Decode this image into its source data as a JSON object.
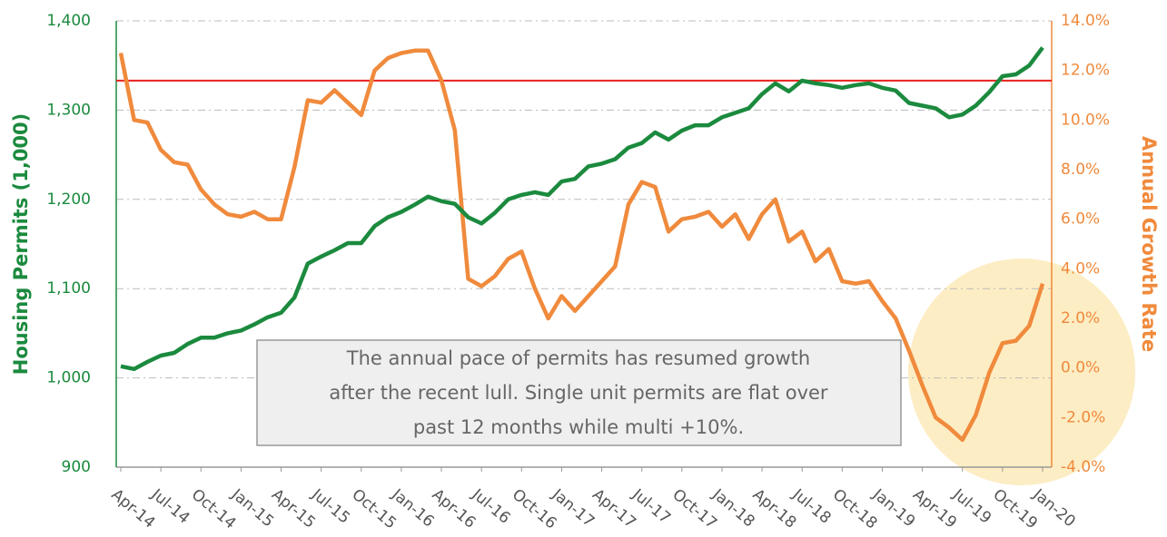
{
  "chart_data": {
    "type": "line",
    "ylabel": "Housing Permits (1,000)",
    "y2label": "Annual Growth Rate",
    "annotation": [
      "The annual pace of permits has resumed growth",
      "after the recent lull.  Single unit permits are flat over",
      "past 12 months while multi +10%."
    ],
    "categories": [
      "Apr-14",
      null,
      null,
      "Jul-14",
      null,
      null,
      "Oct-14",
      null,
      null,
      "Jan-15",
      null,
      null,
      "Apr-15",
      null,
      null,
      "Jul-15",
      null,
      null,
      "Oct-15",
      null,
      null,
      "Jan-16",
      null,
      null,
      "Apr-16",
      null,
      null,
      "Jul-16",
      null,
      null,
      "Oct-16",
      null,
      null,
      "Jan-17",
      null,
      null,
      "Apr-17",
      null,
      null,
      "Jul-17",
      null,
      null,
      "Oct-17",
      null,
      null,
      "Jan-18",
      null,
      null,
      "Apr-18",
      null,
      null,
      "Jul-18",
      null,
      null,
      "Oct-18",
      null,
      null,
      "Jan-19",
      null,
      null,
      "Apr-19",
      null,
      null,
      "Jul-19",
      null,
      null,
      "Oct-19",
      null,
      null,
      "Jan-20"
    ],
    "series": [
      {
        "color": "#1b8a3e",
        "values": [
          1013,
          1010,
          1018,
          1025,
          1028,
          1038,
          1045,
          1045,
          1050,
          1053,
          1060,
          1068,
          1073,
          1090,
          1128,
          1136,
          1143,
          1151,
          1151,
          1170,
          1180,
          1186,
          1194,
          1203,
          1198,
          1195,
          1180,
          1173,
          1185,
          1200,
          1205,
          1208,
          1205,
          1220,
          1223,
          1237,
          1240,
          1245,
          1258,
          1263,
          1275,
          1267,
          1277,
          1283,
          1283,
          1292,
          1297,
          1302,
          1318,
          1330,
          1321,
          1333,
          1330,
          1328,
          1325,
          1328,
          1330,
          1325,
          1322,
          1308,
          1305,
          1302,
          1292,
          1295,
          1305,
          1320,
          1338,
          1340,
          1350,
          1370
        ]
      },
      {
        "color": "#f08a3c",
        "axis": "y2",
        "values": [
          12.7,
          10.0,
          9.9,
          8.8,
          8.3,
          8.2,
          7.2,
          6.6,
          6.2,
          6.1,
          6.3,
          6.0,
          6.0,
          8.1,
          10.8,
          10.7,
          11.2,
          10.7,
          10.2,
          12.0,
          12.5,
          12.7,
          12.8,
          12.8,
          11.6,
          9.6,
          3.6,
          3.3,
          3.7,
          4.4,
          4.7,
          3.2,
          2.0,
          2.9,
          2.3,
          2.9,
          3.5,
          4.1,
          6.6,
          7.5,
          7.3,
          5.5,
          6.0,
          6.1,
          6.3,
          5.7,
          6.2,
          5.2,
          6.2,
          6.8,
          5.1,
          5.5,
          4.3,
          4.8,
          3.5,
          3.4,
          3.5,
          2.7,
          2.0,
          0.7,
          -0.7,
          -2.0,
          -2.4,
          -2.9,
          -1.9,
          -0.2,
          1.0,
          1.1,
          1.7,
          3.4
        ]
      }
    ],
    "reference_line": {
      "value": 1333,
      "color": "#e8211d"
    },
    "ylim": [
      900,
      1400
    ],
    "yticks": [
      900,
      {
        "value": 1000,
        "label": "1,000"
      },
      {
        "value": 1100,
        "label": "1,100"
      },
      {
        "value": 1200,
        "label": "1,200"
      },
      {
        "value": 1300,
        "label": "1,300"
      },
      {
        "value": 1400,
        "label": "1,400"
      }
    ],
    "y2lim": [
      -4,
      14
    ],
    "y2ticks": [
      {
        "value": -4,
        "label": "-4.0%"
      },
      {
        "value": -2,
        "label": "-2.0%"
      },
      {
        "value": 0,
        "label": "0.0%"
      },
      {
        "value": 2,
        "label": "2.0%"
      },
      {
        "value": 4,
        "label": "4.0%"
      },
      {
        "value": 6,
        "label": "6.0%"
      },
      {
        "value": 8,
        "label": "8.0%"
      },
      {
        "value": 10,
        "label": "10.0%"
      },
      {
        "value": 12,
        "label": "12.0%"
      },
      {
        "value": 14,
        "label": "14.0%"
      }
    ],
    "grid": true
  }
}
